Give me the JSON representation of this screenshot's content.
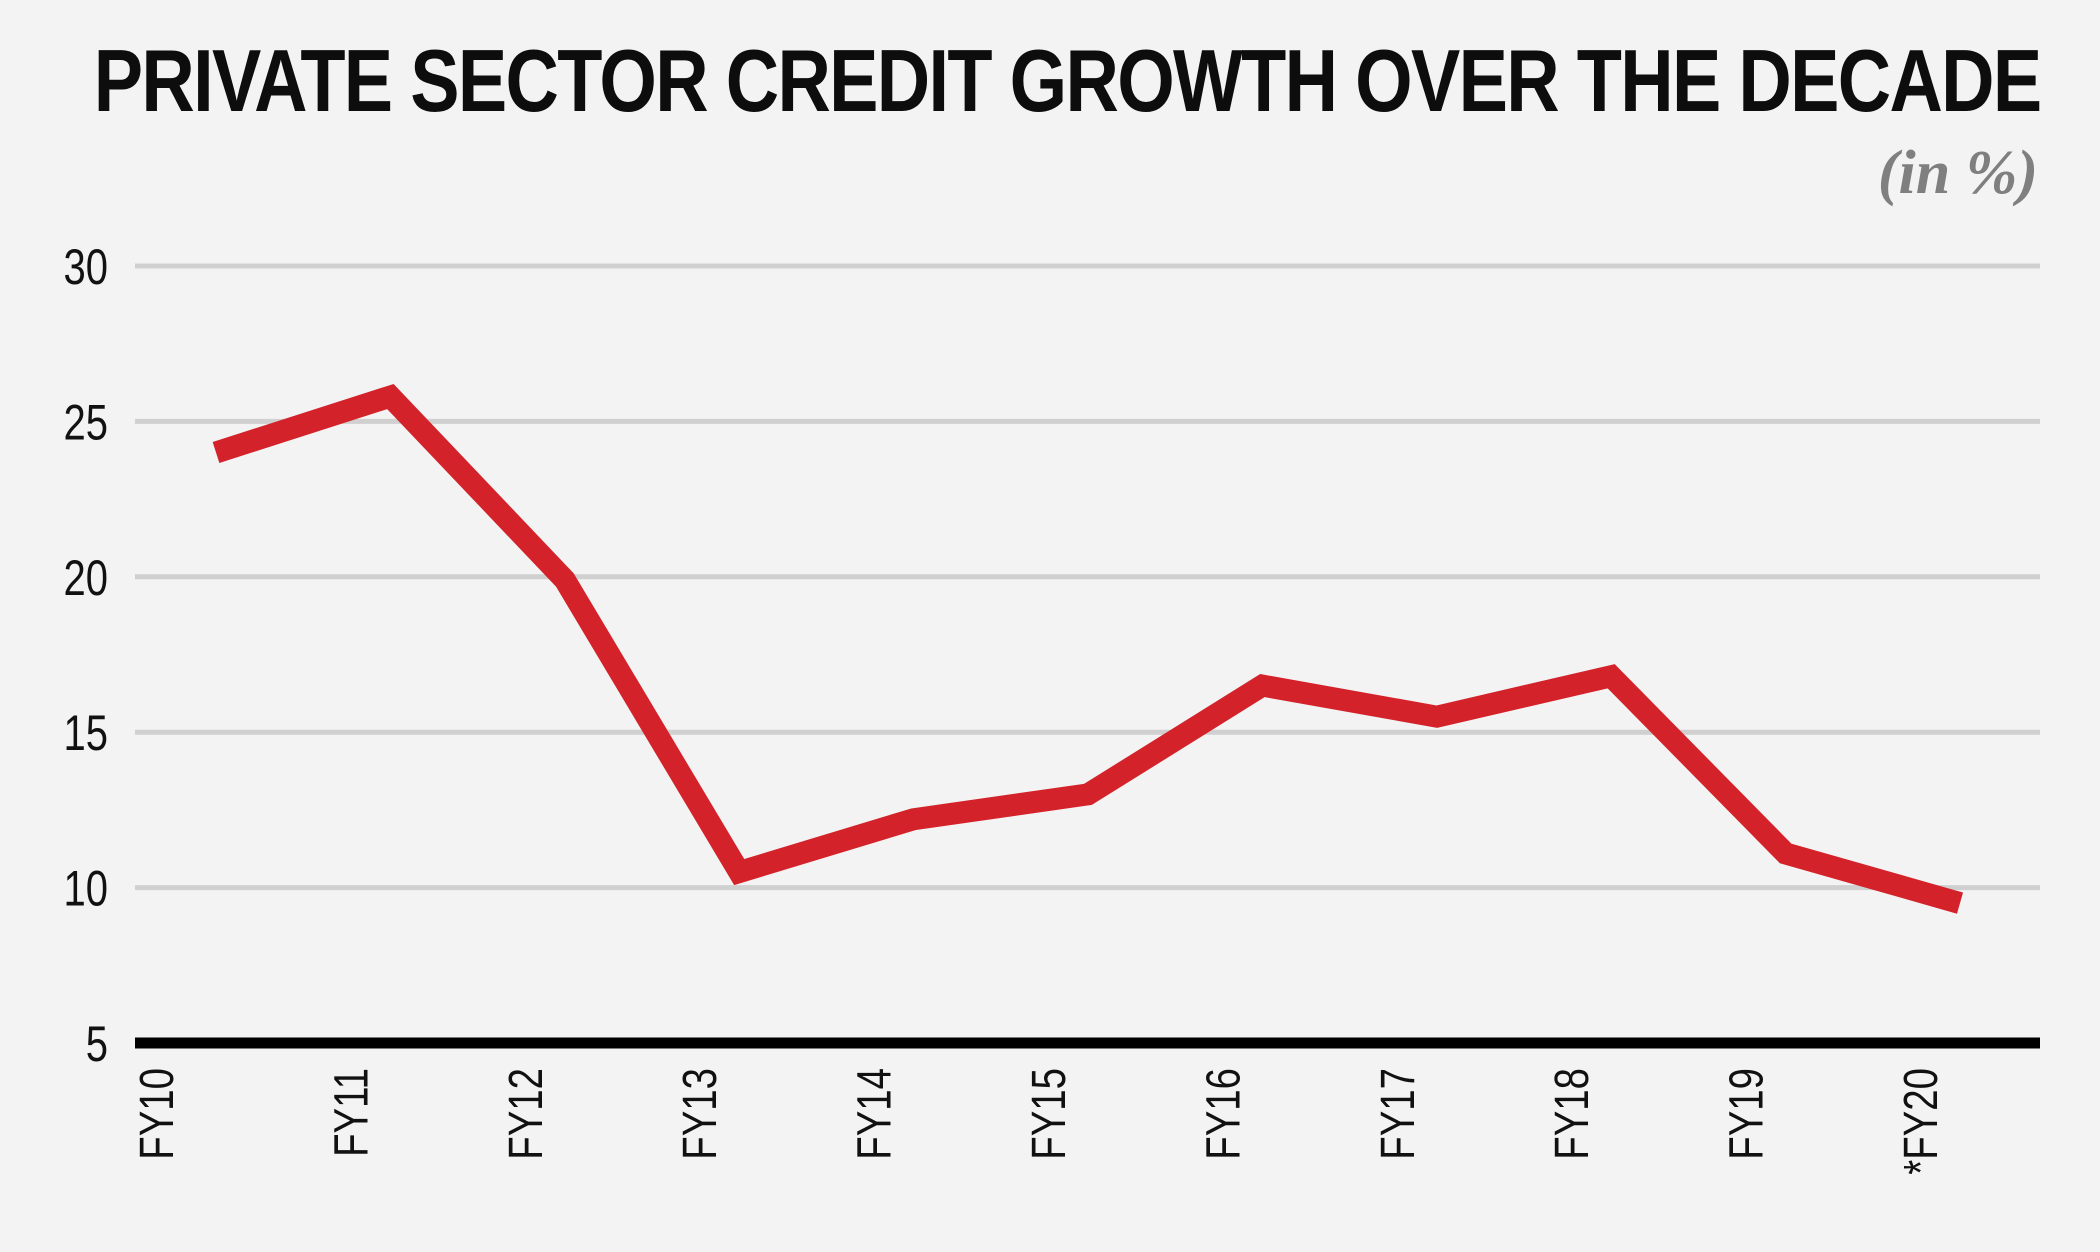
{
  "chart_data": {
    "type": "line",
    "title": "PRIVATE SECTOR CREDIT GROWTH OVER THE DECADE",
    "subtitle": "(in %)",
    "categories": [
      "FY10",
      "FY11",
      "FY12",
      "FY13",
      "FY14",
      "FY15",
      "FY16",
      "FY17",
      "FY18",
      "FY19",
      "*FY20"
    ],
    "series": [
      {
        "values": [
          24,
          25.8,
          19.9,
          10.5,
          12.2,
          13.0,
          16.5,
          15.5,
          16.8,
          11.1,
          9.5
        ]
      }
    ],
    "ylim": [
      5,
      30
    ],
    "yticks": [
      5,
      10,
      15,
      20,
      25,
      30
    ],
    "grid": true,
    "legend": "none"
  },
  "colors": {
    "line": "#d4222a",
    "grid": "#d0d0d0",
    "axis": "#000000",
    "subtitle": "#7f7f7f"
  }
}
